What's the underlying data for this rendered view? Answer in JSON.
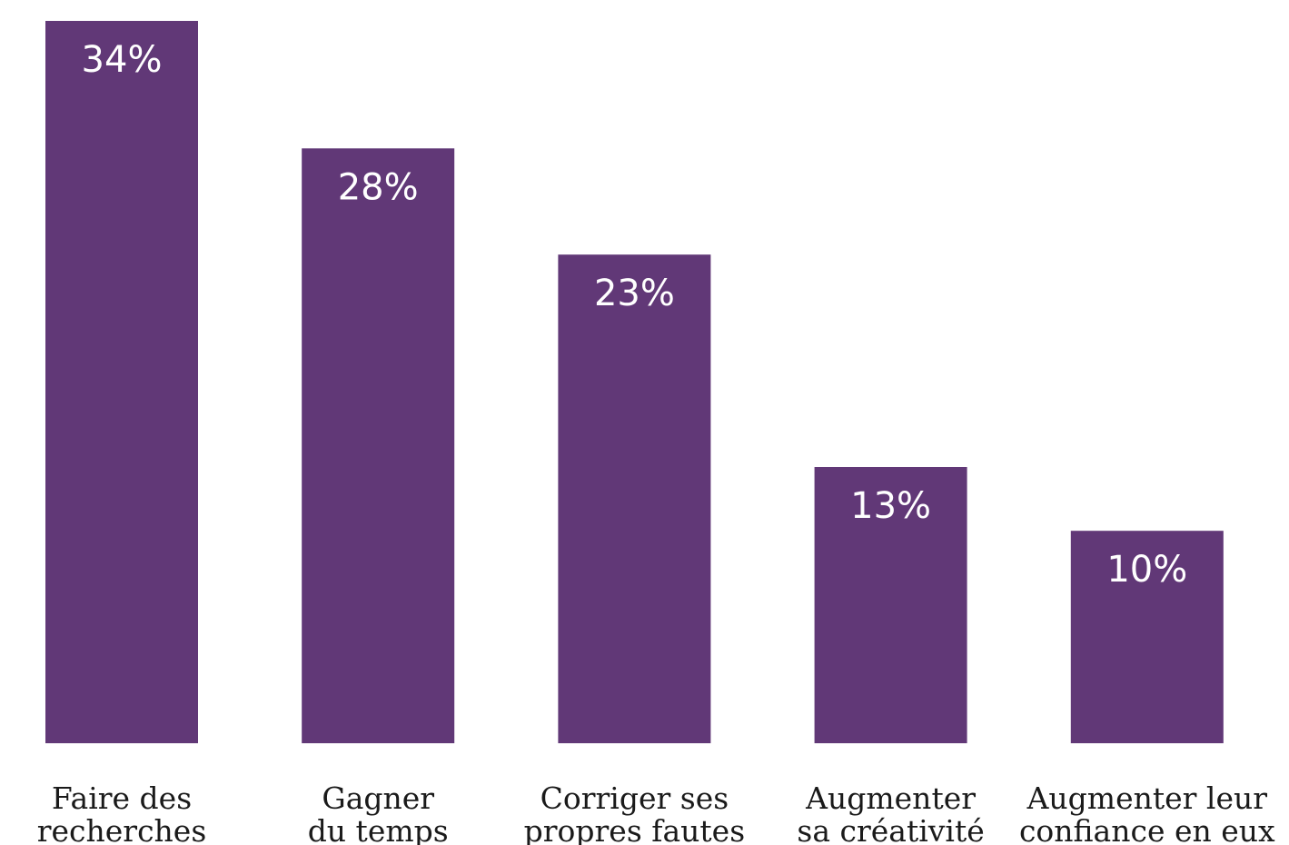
{
  "chart_data": {
    "type": "bar",
    "categories": [
      [
        "Faire des",
        "recherches"
      ],
      [
        "Gagner",
        "du temps"
      ],
      [
        "Corriger ses",
        "propres fautes"
      ],
      [
        "Augmenter",
        "sa créativité"
      ],
      [
        "Augmenter leur",
        "confiance en eux"
      ]
    ],
    "values": [
      34,
      28,
      23,
      13,
      10
    ],
    "data_labels": [
      "34%",
      "28%",
      "23%",
      "13%",
      "10%"
    ],
    "unit": "%",
    "ylim": [
      0,
      34
    ],
    "grid": false,
    "bar_color": "#613877"
  }
}
